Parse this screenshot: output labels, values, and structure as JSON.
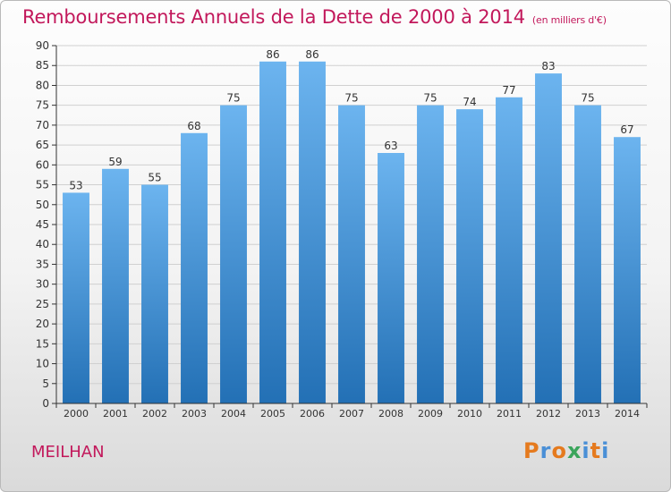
{
  "title": "Remboursements Annuels de la Dette de 2000 à 2014",
  "unit": "(en milliers d'€)",
  "town": "MEILHAN",
  "logo": {
    "text": "Proxiti",
    "colors": [
      "#e57a1e",
      "#4a8fd6",
      "#e57a1e",
      "#3aa55b",
      "#4a8fd6",
      "#e57a1e",
      "#4a8fd6"
    ]
  },
  "colors": {
    "bar": "#3a8fd8",
    "bar_light": "#6cb4ef",
    "bar_dark": "#2370b5",
    "title": "#c2185b",
    "grid": "#d0d0d0"
  },
  "chart_data": {
    "type": "bar",
    "title": "Remboursements Annuels de la Dette de 2000 à 2014",
    "ylabel": "(en milliers d'€)",
    "categories": [
      "2000",
      "2001",
      "2002",
      "2003",
      "2004",
      "2005",
      "2006",
      "2007",
      "2008",
      "2009",
      "2010",
      "2011",
      "2012",
      "2013",
      "2014"
    ],
    "values": [
      53,
      59,
      55,
      68,
      75,
      86,
      86,
      75,
      63,
      75,
      74,
      77,
      83,
      75,
      67
    ],
    "ylim": [
      0,
      90
    ],
    "yticks": [
      0,
      5,
      10,
      15,
      20,
      25,
      30,
      35,
      40,
      45,
      50,
      55,
      60,
      65,
      70,
      75,
      80,
      85,
      90
    ],
    "grid": true
  }
}
